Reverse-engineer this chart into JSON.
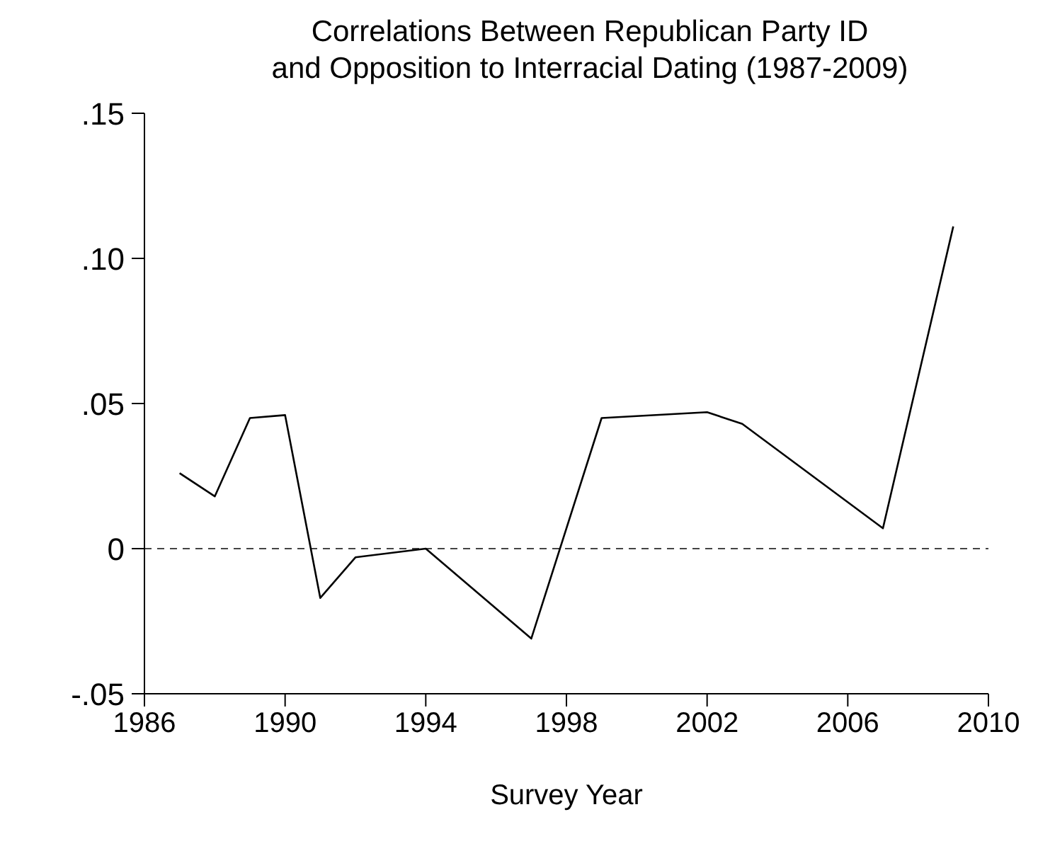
{
  "chart_data": {
    "type": "line",
    "title": "Correlations Between Republican Party ID\nand Opposition to Interracial Dating (1987-2009)",
    "xlabel": "Survey Year",
    "x": [
      1987,
      1988,
      1989,
      1990,
      1991,
      1992,
      1994,
      1997,
      1999,
      2002,
      2003,
      2007,
      2009
    ],
    "series": [
      {
        "color": "#000000",
        "values": [
          0.026,
          0.018,
          0.045,
          0.046,
          -0.017,
          -0.003,
          0,
          -0.031,
          0.045,
          0.047,
          0.043,
          0.007,
          0.111
        ]
      }
    ],
    "xlim": [
      1986,
      2010
    ],
    "xticks": [
      1986,
      1990,
      1994,
      1998,
      2002,
      2006,
      2010
    ],
    "ylim": [
      -0.05,
      0.15
    ],
    "yticks": [
      {
        "value": -0.05,
        "label": "-.05"
      },
      0,
      {
        "value": 0.05,
        "label": ".05"
      },
      {
        "value": 0.1,
        "label": ".10"
      },
      {
        "value": 0.15,
        "label": ".15"
      }
    ],
    "ref_lines": [
      {
        "axis": "y",
        "value": 0,
        "color": "#444444",
        "line_style": "dashed"
      }
    ],
    "grid": false,
    "legend": false,
    "marker": "none",
    "line_style": "solid"
  }
}
